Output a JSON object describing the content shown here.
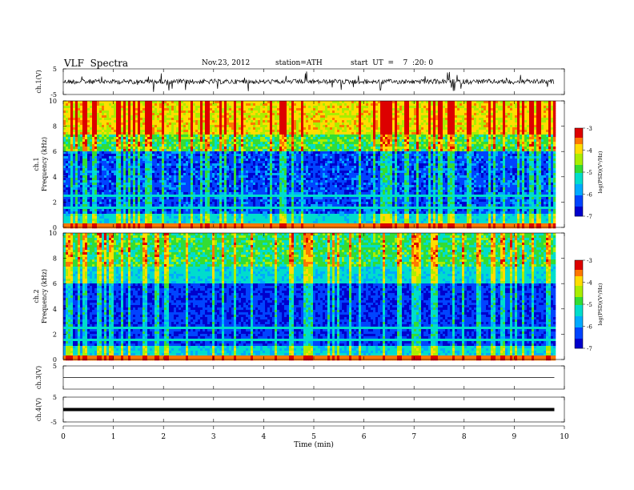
{
  "header": {
    "title": "VLF  Spectra",
    "date": "Nov.23, 2012",
    "station": "station=ATH",
    "start_ut": "start  UT  =    7  :20: 0"
  },
  "chart_data": [
    {
      "type": "line",
      "panel": "ch1-waveform",
      "ylabel": "ch.1(V)",
      "ylim": [
        -5,
        5
      ],
      "y_ticks": [
        "5",
        "-5"
      ],
      "xlim": [
        0,
        10
      ],
      "data_extent_min": [
        0,
        9.8
      ],
      "series": [
        {
          "values_description_level": 0
        }
      ]
    },
    {
      "type": "heatmap",
      "panel": "ch1-spectrogram",
      "ylabel_top": "ch.1",
      "ylabel": "Frequency  (kHz)",
      "ylim": [
        0,
        10
      ],
      "y_ticks": [
        "0",
        "2",
        "4",
        "6",
        "8",
        "10"
      ],
      "xlim": [
        0,
        10
      ],
      "data_extent_min": [
        0,
        9.8
      ],
      "colorbar": {
        "label": "log(PSD)(V²/Hz)",
        "range": [
          -7,
          -3
        ],
        "ticks": [
          "-3",
          "-4",
          "-5",
          "-6",
          "-7"
        ]
      }
    },
    {
      "type": "heatmap",
      "panel": "ch2-spectrogram",
      "ylabel_top": "ch.2",
      "ylabel": "Frequency  (kHz)",
      "ylim": [
        0,
        10
      ],
      "y_ticks": [
        "0",
        "2",
        "4",
        "6",
        "8",
        "10"
      ],
      "xlim": [
        0,
        10
      ],
      "data_extent_min": [
        0,
        9.8
      ],
      "colorbar": {
        "label": "log(PSD)(V²/Hz)",
        "range": [
          -7,
          -3
        ],
        "ticks": [
          "-3",
          "-4",
          "-5",
          "-6",
          "-7"
        ]
      }
    },
    {
      "type": "line",
      "panel": "ch3-waveform",
      "ylabel": "ch.3(V)",
      "ylim": [
        -5,
        5
      ],
      "y_ticks": [
        "5"
      ],
      "xlim": [
        0,
        10
      ]
    },
    {
      "type": "line",
      "panel": "ch4-waveform",
      "ylabel": "ch.4(V)",
      "ylim": [
        -5,
        5
      ],
      "y_ticks": [
        "5",
        "-5"
      ],
      "xlim": [
        0,
        10
      ]
    }
  ],
  "x_axis": {
    "label": "Time  (min)",
    "ticks": [
      "0",
      "1",
      "2",
      "3",
      "4",
      "5",
      "6",
      "7",
      "8",
      "9",
      "10"
    ]
  }
}
